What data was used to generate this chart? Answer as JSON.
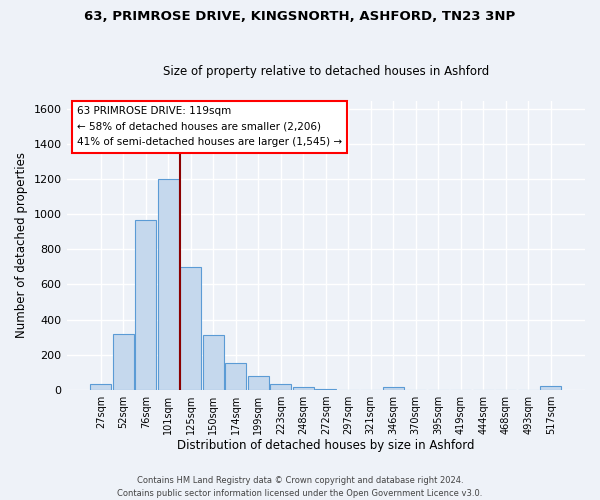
{
  "title": "63, PRIMROSE DRIVE, KINGSNORTH, ASHFORD, TN23 3NP",
  "subtitle": "Size of property relative to detached houses in Ashford",
  "xlabel": "Distribution of detached houses by size in Ashford",
  "ylabel": "Number of detached properties",
  "bar_labels": [
    "27sqm",
    "52sqm",
    "76sqm",
    "101sqm",
    "125sqm",
    "150sqm",
    "174sqm",
    "199sqm",
    "223sqm",
    "248sqm",
    "272sqm",
    "297sqm",
    "321sqm",
    "346sqm",
    "370sqm",
    "395sqm",
    "419sqm",
    "444sqm",
    "468sqm",
    "493sqm",
    "517sqm"
  ],
  "bar_values": [
    30,
    320,
    970,
    1200,
    700,
    310,
    150,
    75,
    30,
    15,
    5,
    0,
    0,
    15,
    0,
    0,
    0,
    0,
    0,
    0,
    20
  ],
  "bar_color": "#c5d8ed",
  "bar_edge_color": "#5b9bd5",
  "vline_color": "#8b0000",
  "ylim": [
    0,
    1650
  ],
  "yticks": [
    0,
    200,
    400,
    600,
    800,
    1000,
    1200,
    1400,
    1600
  ],
  "annotation_title": "63 PRIMROSE DRIVE: 119sqm",
  "annotation_line1": "← 58% of detached houses are smaller (2,206)",
  "annotation_line2": "41% of semi-detached houses are larger (1,545) →",
  "footer_line1": "Contains HM Land Registry data © Crown copyright and database right 2024.",
  "footer_line2": "Contains public sector information licensed under the Open Government Licence v3.0.",
  "bg_color": "#eef2f8",
  "plot_bg_color": "#eef2f8",
  "grid_color": "#ffffff"
}
